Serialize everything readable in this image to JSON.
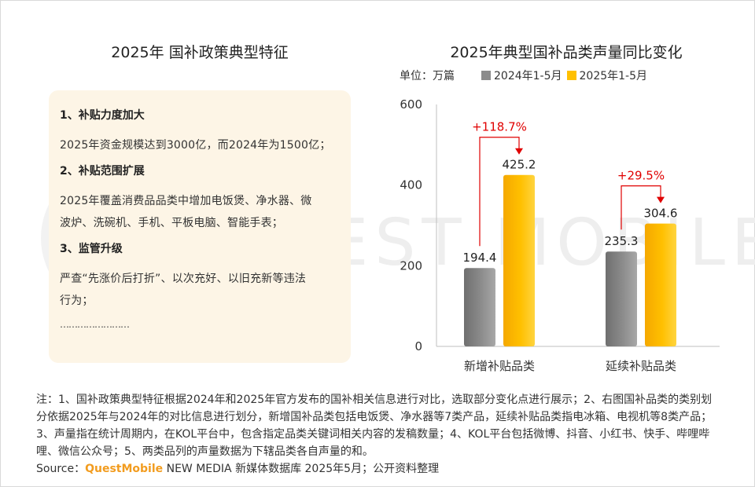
{
  "left_panel": {
    "title": "2025年 国补政策典型特征",
    "sections": [
      {
        "heading": "1、补贴力度加大",
        "lines": [
          "2025年资金规模达到3000亿，而2024年为1500亿；"
        ]
      },
      {
        "heading": "2、补贴范围扩展",
        "lines": [
          "2025年覆盖消费品品类中增加电饭煲、净水器、微",
          "波炉、洗碗机、手机、平板电脑、智能手表；"
        ]
      },
      {
        "heading": "3、监管升级",
        "lines": [
          "严查“先涨价后打折”、以次充好、以旧充新等违法",
          "行为；"
        ]
      }
    ],
    "ellipsis": "……………………"
  },
  "watermark": "QUEST MOBILE",
  "colors": {
    "series_2024": "#8c8c8c",
    "series_2025": "#ffc000",
    "growth_arrow": "#e00000",
    "card_bg": "#fdf5e6",
    "brand": "#f29c1f"
  },
  "chart_data": {
    "type": "bar",
    "title": "2025年典型国补品类声量同比变化",
    "unit": "单位：万篇",
    "categories": [
      "新增补贴品类",
      "延续补贴品类"
    ],
    "series": [
      {
        "name": "2024年1-5月",
        "values": [
          194.4,
          235.3
        ]
      },
      {
        "name": "2025年1-5月",
        "values": [
          425.2,
          304.6
        ]
      }
    ],
    "value_labels": [
      [
        "194.4",
        "235.3"
      ],
      [
        "425.2",
        "304.6"
      ]
    ],
    "annotations": [
      "+118.7%",
      "+29.5%"
    ],
    "ylim": [
      0,
      600
    ],
    "yticks": [
      "0",
      "200",
      "400",
      "600"
    ],
    "grid": false,
    "legend_position": "top"
  },
  "footer": {
    "note": "注：1、国补政策典型特征根据2024年和2025年官方发布的国补相关信息进行对比，选取部分变化点进行展示；2、右图国补品类的类别划分依据2025年与2024年的对比信息进行划分，新增国补品类包括电饭煲、净水器等7类产品，延续补贴品类指电冰箱、电视机等8类产品；3、声量指在统计周期内，在KOL平台中，包含指定品类关键词相关内容的发稿数量；4、KOL平台包括微博、抖音、小红书、快手、哔哩哔哩、微信公众号；5、两类品列的声量数据为下辖品类各自声量的和。",
    "source_prefix": "Source：",
    "source_brand": "QuestMobile",
    "source_rest": " NEW MEDIA 新媒体数据库 2025年5月；公开资料整理"
  }
}
